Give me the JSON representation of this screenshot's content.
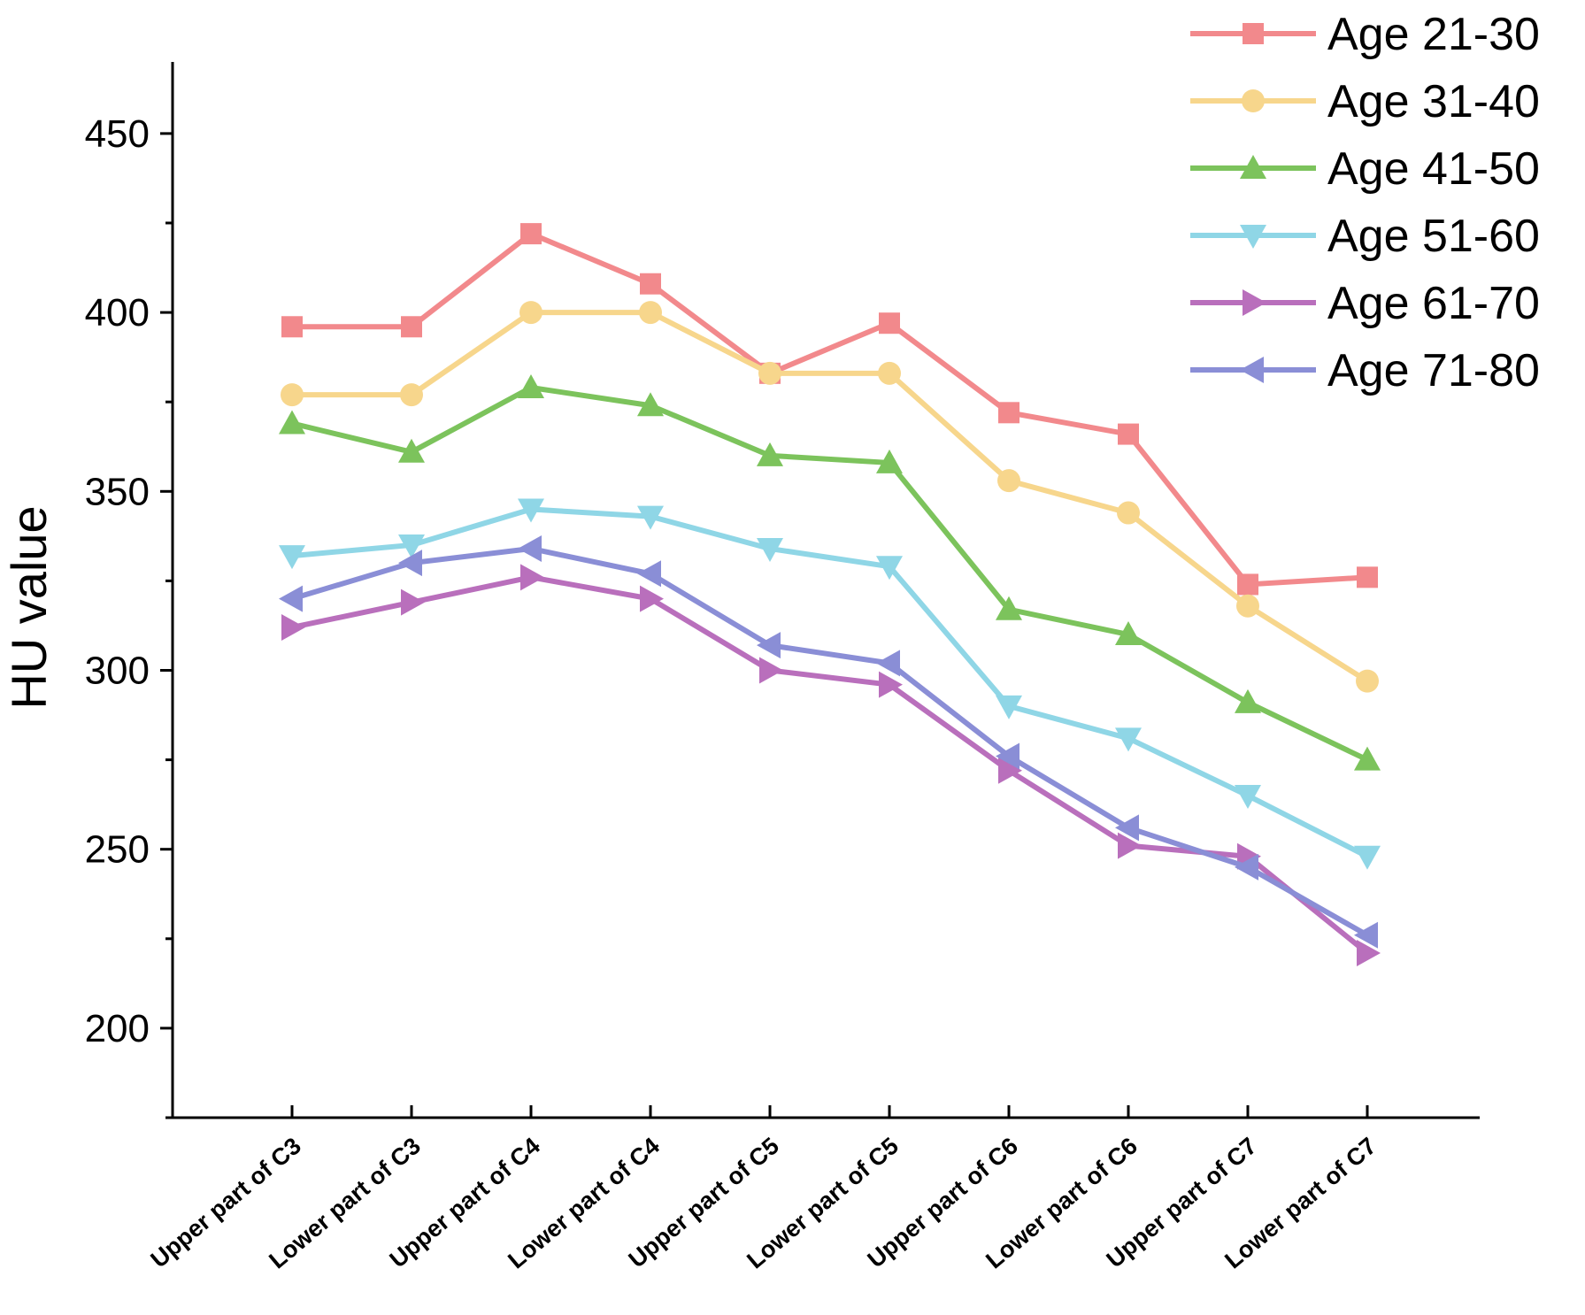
{
  "chart_data": {
    "type": "line",
    "title": "",
    "xlabel": "",
    "ylabel": "HU value",
    "ylim": [
      175,
      470
    ],
    "yticks": [
      200,
      250,
      300,
      350,
      400,
      450
    ],
    "ytick_labels": [
      "200",
      "250",
      "300",
      "350",
      "400",
      "450"
    ],
    "categories": [
      "Upper part of C3",
      "Lower part of C3",
      "Upper part of C4",
      "Lower part of C4",
      "Upper part of C5",
      "Lower part of C5",
      "Upper part of C6",
      "Lower part of C6",
      "Upper part of C7",
      "Lower part of C7"
    ],
    "legend_position": "top-right",
    "grid": false,
    "series": [
      {
        "name": "Age 21-30",
        "color": "#f2898c",
        "marker": "square",
        "values": [
          396,
          396,
          422,
          408,
          383,
          397,
          372,
          366,
          324,
          326
        ]
      },
      {
        "name": "Age 31-40",
        "color": "#f7d68c",
        "marker": "circle",
        "values": [
          377,
          377,
          400,
          400,
          383,
          383,
          353,
          344,
          318,
          297
        ]
      },
      {
        "name": "Age 41-50",
        "color": "#7cc35c",
        "marker": "triangle-up",
        "values": [
          369,
          361,
          379,
          374,
          360,
          358,
          317,
          310,
          291,
          275
        ]
      },
      {
        "name": "Age 51-60",
        "color": "#8fd6e6",
        "marker": "triangle-down",
        "values": [
          332,
          335,
          345,
          343,
          334,
          329,
          290,
          281,
          265,
          248
        ]
      },
      {
        "name": "Age 61-70",
        "color": "#b96fbc",
        "marker": "triangle-right",
        "values": [
          312,
          319,
          326,
          320,
          300,
          296,
          272,
          251,
          248,
          221
        ]
      },
      {
        "name": "Age 71-80",
        "color": "#8a8ed6",
        "marker": "triangle-left",
        "values": [
          320,
          330,
          334,
          327,
          307,
          302,
          276,
          256,
          245,
          226
        ]
      }
    ]
  }
}
